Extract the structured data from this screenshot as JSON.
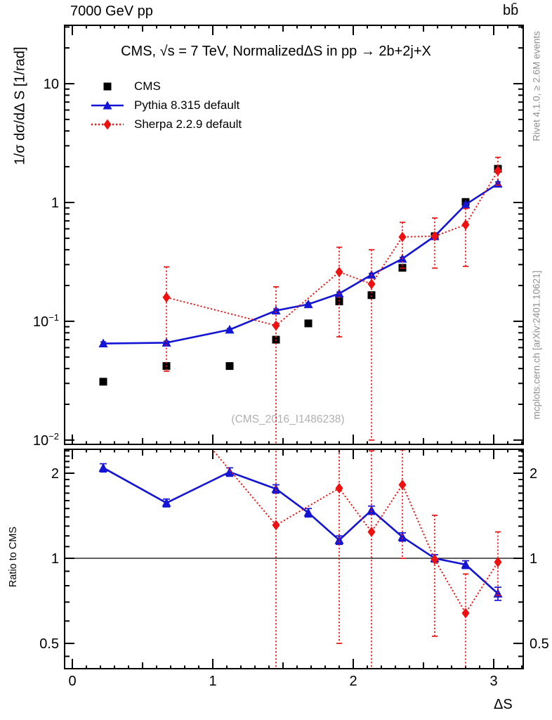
{
  "header": {
    "left": "7000 GeV pp",
    "right": "bb̄"
  },
  "side_texts": {
    "top_right": "Rivet 4.1.0, ≥ 2.6M events",
    "bottom_right": "mcplots.cern.ch [arXiv:2401.10621]"
  },
  "watermark": "(CMS_2016_I1486238)",
  "chart_data": {
    "type": "line",
    "title": "CMS, √s = 7 TeV, NormalizedΔS in pp →  2b+2j+X",
    "xlabel": "ΔS",
    "ylabel_main": "1/σ dσ/dΔ S [1/rad]",
    "ylabel_ratio": "Ratio to CMS",
    "x_range": [
      -0.055,
      3.21
    ],
    "y_range_main": [
      0.0092,
      31
    ],
    "y_range_ratio": [
      0.407,
      2.43
    ],
    "y_scale": "log",
    "grid": false,
    "legend_position": "top-left-inside",
    "x_ticks": [
      {
        "v": 0,
        "label": "0"
      },
      {
        "v": 1,
        "label": "1"
      },
      {
        "v": 2,
        "label": "2"
      },
      {
        "v": 3,
        "label": "3"
      }
    ],
    "y_ticks_main": [
      {
        "v": 10,
        "base": "10"
      },
      {
        "v": 1,
        "base": "1"
      },
      {
        "v": 0.1,
        "base": "10",
        "sup": "−1"
      },
      {
        "v": 0.01,
        "base": "10",
        "sup": "−2"
      }
    ],
    "y_ticks_ratio": [
      {
        "v": 2,
        "label": "2"
      },
      {
        "v": 1,
        "label": "1"
      },
      {
        "v": 0.5,
        "label": "0.5"
      }
    ],
    "ratio_reference": 1,
    "series": [
      {
        "name": "CMS",
        "marker": "square",
        "line_style": "none",
        "color": "#000000",
        "x": [
          0.22,
          0.67,
          1.12,
          1.45,
          1.68,
          1.9,
          2.13,
          2.35,
          2.58,
          2.8,
          3.03
        ],
        "y": [
          0.031,
          0.042,
          0.042,
          0.07,
          0.096,
          0.147,
          0.166,
          0.282,
          0.52,
          1.01,
          1.92
        ],
        "yerr": [
          0.0015,
          0.002,
          0.002,
          0.004,
          0.005,
          0.007,
          0.008,
          0.012,
          0.025,
          0.05,
          0.1
        ]
      },
      {
        "name": "Pythia 8.315 default",
        "marker": "triangle",
        "line_style": "solid",
        "color": "#1414d4",
        "x": [
          0.22,
          0.67,
          1.12,
          1.45,
          1.68,
          1.9,
          2.13,
          2.35,
          2.58,
          2.8,
          3.03
        ],
        "y": [
          0.065,
          0.066,
          0.085,
          0.123,
          0.139,
          0.171,
          0.246,
          0.336,
          0.52,
          0.96,
          1.44
        ],
        "yerr": [
          0.002,
          0.002,
          0.002,
          0.004,
          0.004,
          0.005,
          0.007,
          0.009,
          0.014,
          0.03,
          0.05
        ],
        "ratio": [
          2.09,
          1.57,
          2.02,
          1.76,
          1.45,
          1.16,
          1.48,
          1.19,
          1.0,
          0.95,
          0.75
        ],
        "ratio_err": [
          0.07,
          0.05,
          0.07,
          0.06,
          0.05,
          0.04,
          0.05,
          0.04,
          0.03,
          0.03,
          0.04
        ]
      },
      {
        "name": "Sherpa 2.2.9 default",
        "marker": "diamond",
        "line_style": "dotted",
        "color": "#ee1111",
        "x": [
          0.67,
          1.45,
          1.9,
          2.13,
          2.35,
          2.58,
          2.8,
          3.03
        ],
        "y": [
          0.159,
          0.092,
          0.26,
          0.206,
          0.513,
          0.52,
          0.65,
          1.85
        ],
        "y_hi": [
          0.287,
          0.195,
          0.42,
          0.4,
          0.68,
          0.74,
          0.89,
          2.4
        ],
        "y_lo": [
          0.038,
          0.004,
          0.074,
          0.01,
          0.28,
          0.28,
          0.29,
          1.4
        ],
        "ratio": [
          3.79,
          1.31,
          1.77,
          1.24,
          1.82,
          0.99,
          0.64,
          0.97
        ],
        "ratio_hi": [
          null,
          6.0,
          2.5,
          2.4,
          2.42,
          1.42,
          0.88,
          1.24
        ],
        "ratio_lo": [
          null,
          0.28,
          0.5,
          0.28,
          1.0,
          0.53,
          0.28,
          0.74
        ]
      }
    ]
  }
}
